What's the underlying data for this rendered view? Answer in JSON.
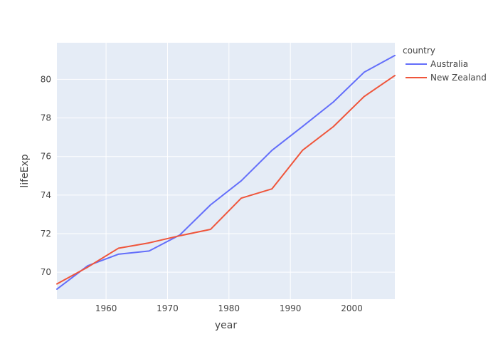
{
  "chart_data": {
    "type": "line",
    "xlabel": "year",
    "ylabel": "lifeExp",
    "xlim": [
      1952,
      2007
    ],
    "ylim": [
      68.6,
      81.9
    ],
    "x_ticks": [
      1960,
      1970,
      1980,
      1990,
      2000
    ],
    "y_ticks": [
      70,
      72,
      74,
      76,
      78,
      80
    ],
    "x_tick_labels": [
      "1960",
      "1970",
      "1980",
      "1990",
      "2000"
    ],
    "y_tick_labels": [
      "70",
      "72",
      "74",
      "76",
      "78",
      "80"
    ],
    "x": [
      1952,
      1957,
      1962,
      1967,
      1972,
      1977,
      1982,
      1987,
      1992,
      1997,
      2002,
      2007
    ],
    "grid": true,
    "legend": {
      "title": "country",
      "placement": "top-right, outside plot"
    },
    "series": [
      {
        "name": "Australia",
        "color": "#636efa",
        "values": [
          69.12,
          70.33,
          70.93,
          71.1,
          71.93,
          73.49,
          74.74,
          76.32,
          77.56,
          78.83,
          80.37,
          81.24
        ]
      },
      {
        "name": "New Zealand",
        "color": "#ef553b",
        "values": [
          69.39,
          70.26,
          71.24,
          71.52,
          71.89,
          72.22,
          73.84,
          74.32,
          76.33,
          77.55,
          79.11,
          80.2
        ]
      }
    ]
  },
  "colors": {
    "plot_background": "#e5ecf6",
    "gridline": "#ffffff",
    "text": "#444444"
  }
}
